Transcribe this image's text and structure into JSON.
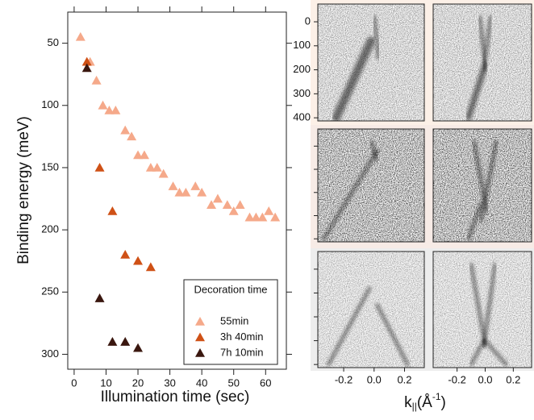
{
  "chart_data": [
    {
      "type": "scatter",
      "xlabel": "Illumination time (sec)",
      "ylabel": "Binding energy (meV)",
      "xlim": [
        -2,
        66.5
      ],
      "xticks": [
        0,
        10,
        20,
        30,
        40,
        50,
        60
      ],
      "ylim": [
        25,
        312
      ],
      "y_inverted": true,
      "yticks": [
        50,
        100,
        150,
        200,
        250,
        300
      ],
      "legend_title": "Decoration time",
      "legend": "lower right",
      "series": [
        {
          "name": "55min",
          "color": "#f5a98a",
          "x": [
            2,
            4,
            5,
            7,
            9,
            11,
            13,
            16,
            18,
            20,
            22,
            24,
            26,
            28,
            31,
            33,
            35,
            38,
            40,
            43,
            45,
            48,
            50,
            52,
            55,
            57,
            59,
            61,
            63
          ],
          "values": [
            45,
            65,
            65,
            80,
            100,
            104,
            104,
            120,
            125,
            140,
            140,
            150,
            150,
            155,
            165,
            170,
            170,
            165,
            170,
            180,
            175,
            180,
            185,
            180,
            190,
            190,
            190,
            185,
            190
          ]
        },
        {
          "name": "3h 40min",
          "color": "#cf5116",
          "x": [
            4,
            8,
            12,
            16,
            20,
            24
          ],
          "values": [
            65,
            150,
            185,
            220,
            225,
            230
          ]
        },
        {
          "name": "7h 10min",
          "color": "#3a170f",
          "x": [
            4,
            8,
            12,
            16,
            20
          ],
          "values": [
            70,
            255,
            290,
            290,
            295
          ]
        }
      ]
    },
    {
      "type": "image",
      "x_label": [
        "k",
        "||",
        "(Å",
        "-1",
        ")"
      ],
      "xlim": [
        -0.37,
        0.33
      ],
      "xticks": [
        -0.2,
        {
          "value": 0,
          "label": "0.0"
        },
        0.2
      ],
      "ylim": [
        -74,
        413
      ],
      "y_inverted": true,
      "yticks": [
        0,
        100,
        200,
        300,
        400
      ]
    }
  ]
}
